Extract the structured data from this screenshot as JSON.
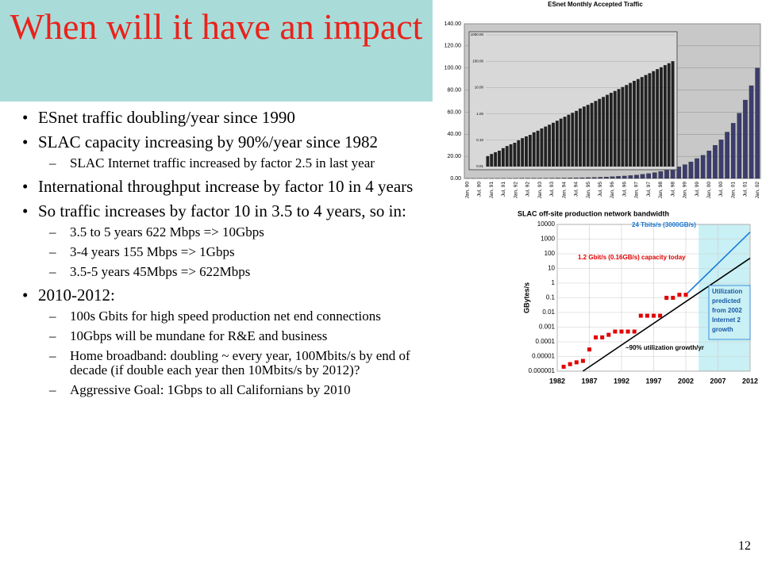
{
  "slide": {
    "title": "When will it have an impact",
    "bullets": [
      {
        "level": 1,
        "text": "ESnet traffic doubling/year since 1990"
      },
      {
        "level": 1,
        "text": "SLAC capacity increasing by 90%/year since 1982"
      },
      {
        "level": 2,
        "text": "SLAC Internet traffic increased by factor 2.5 in last year"
      },
      {
        "level": 1,
        "text": "International throughput increase by factor 10 in 4 years"
      },
      {
        "level": 1,
        "text": "So traffic increases by factor 10 in 3.5 to 4 years, so in:"
      },
      {
        "level": 2,
        "text": "3.5 to 5 years 622 Mbps => 10Gbps"
      },
      {
        "level": 2,
        "text": "3-4 years 155 Mbps => 1Gbps"
      },
      {
        "level": 2,
        "text": "3.5-5 years 45Mbps => 622Mbps"
      },
      {
        "level": 1,
        "text": "2010-2012:"
      },
      {
        "level": 2,
        "text": "100s Gbits for high speed production net end connections"
      },
      {
        "level": 2,
        "text": "10Gbps will be mundane for R&E and business"
      },
      {
        "level": 2,
        "text": "Home broadband: doubling ~ every year, 100Mbits/s by end of decade (if double each year then 10Mbits/s by 2012)?"
      },
      {
        "level": 2,
        "text": "Aggressive Goal: 1Gbps to all Californians by 2010"
      }
    ],
    "page_number": "12"
  },
  "chart_data": [
    {
      "type": "bar",
      "title": "ESnet Monthly Accepted Traffic",
      "color": "#3c3c6e",
      "categories": [
        "Jan, 90",
        null,
        "Jul, 90",
        null,
        "Jan, 91",
        null,
        "Jul, 91",
        null,
        "Jan, 92",
        null,
        "Jul, 92",
        null,
        "Jan, 93",
        null,
        "Jul, 93",
        null,
        "Jan, 94",
        null,
        "Jul, 94",
        null,
        "Jan, 95",
        null,
        "Jul, 95",
        null,
        "Jan, 96",
        null,
        "Jul, 96",
        null,
        "Jan, 97",
        null,
        "Jul, 97",
        null,
        "Jan, 98",
        null,
        "Jul, 98",
        null,
        "Jan, 99",
        null,
        "Jul, 99",
        null,
        "Jan, 00",
        null,
        "Jul, 00",
        null,
        "Jan, 01",
        null,
        "Jul, 01",
        null,
        "Jan, 02"
      ],
      "values": [
        0.025,
        0.03,
        0.035,
        0.04,
        0.05,
        0.06,
        0.07,
        0.08,
        0.1,
        0.12,
        0.14,
        0.16,
        0.2,
        0.23,
        0.28,
        0.33,
        0.39,
        0.46,
        0.55,
        0.66,
        0.78,
        0.93,
        1.1,
        1.3,
        1.6,
        1.9,
        2.2,
        2.6,
        3.1,
        3.7,
        4.4,
        5.3,
        6.3,
        7.4,
        8.8,
        10.5,
        12.5,
        15,
        18,
        21,
        25,
        30,
        35,
        42,
        50,
        59,
        71,
        84,
        100
      ],
      "ylim": [
        0,
        140
      ],
      "yticks": [
        {
          "value": 0,
          "label": "0.00"
        },
        {
          "value": 20,
          "label": "20.00"
        },
        {
          "value": 40,
          "label": "40.00"
        },
        {
          "value": 60,
          "label": "60.00"
        },
        {
          "value": 80,
          "label": "80.00"
        },
        {
          "value": 100,
          "label": "100.00"
        },
        {
          "value": 120,
          "label": "120.00"
        },
        {
          "value": 140,
          "label": "140.00"
        }
      ],
      "inset": {
        "log": true,
        "ylim": [
          0.01,
          1000
        ],
        "yticks": [
          {
            "value": 0.01,
            "label": "0.01"
          },
          {
            "value": 0.1,
            "label": "0.10"
          },
          {
            "value": 1,
            "label": "1.00"
          },
          {
            "value": 10,
            "label": "10.00"
          },
          {
            "value": 100,
            "label": "100.00"
          },
          {
            "value": 1000,
            "label": "1000.00"
          }
        ]
      }
    },
    {
      "type": "scatter",
      "title": "SLAC off-site production network bandwidth",
      "ylabel": "GBytes/s",
      "log": true,
      "color": "#e00000",
      "x": [
        1983,
        1984,
        1985,
        1986,
        1987,
        1988,
        1989,
        1990,
        1991,
        1992,
        1993,
        1994,
        1995,
        1996,
        1997,
        1998,
        1999,
        2000,
        2001,
        2002
      ],
      "values": [
        2e-06,
        3e-06,
        4e-06,
        5e-06,
        3e-05,
        0.0002,
        0.0002,
        0.0003,
        0.0005,
        0.0005,
        0.0005,
        0.0005,
        0.006,
        0.006,
        0.006,
        0.006,
        0.1,
        0.1,
        0.16,
        0.16
      ],
      "xlim": [
        1982,
        2012
      ],
      "xticks": [
        1982,
        1987,
        1992,
        1997,
        2002,
        2007,
        2012
      ],
      "ylim": [
        1e-06,
        10000
      ],
      "yticks": [
        1e-06,
        1e-05,
        0.0001,
        0.001,
        0.01,
        0.1,
        1,
        10,
        100,
        1000,
        10000
      ],
      "series": [
        {
          "name": "~90% utilization growth/yr",
          "color": "#000000",
          "x": [
            1986,
            2012
          ],
          "values": [
            1e-06,
            50
          ]
        },
        {
          "name": "24 Tbits/s (3000GB/s)",
          "color": "#1a7ad8",
          "x": [
            2002,
            2012
          ],
          "values": [
            0.16,
            3000
          ]
        }
      ],
      "shaded_region": [
        2004,
        2012
      ],
      "capacity_note": "1.2 Gbit/s (0.16GB/s) capacity today",
      "utilization_note": [
        "Utilization",
        "predicted",
        "from 2002",
        "Internet 2",
        "growth"
      ]
    }
  ]
}
